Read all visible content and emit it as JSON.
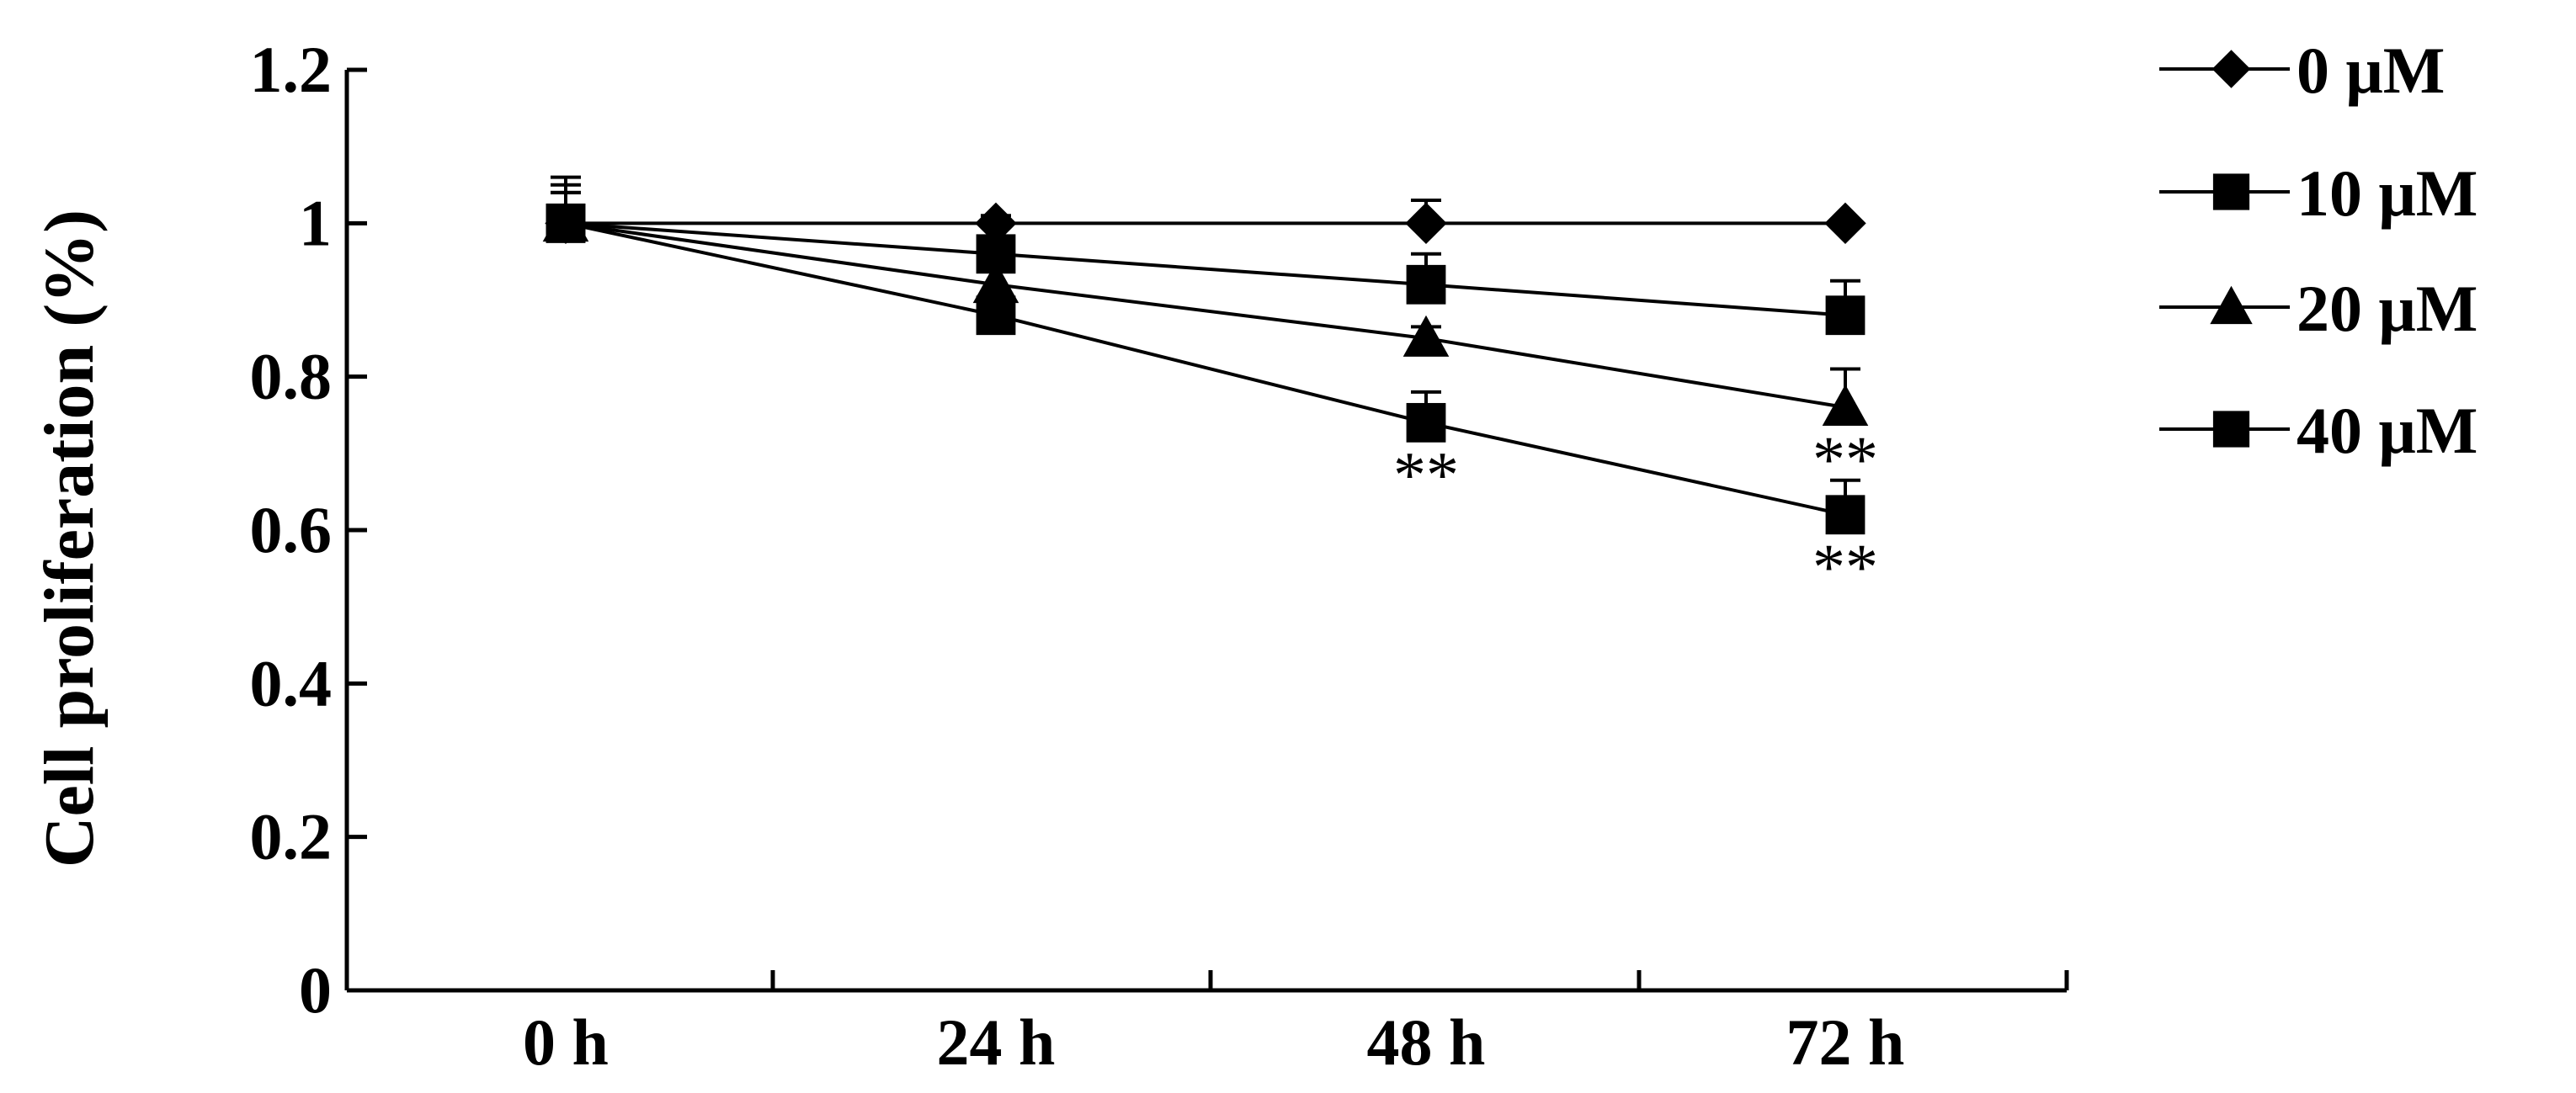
{
  "chart_data": {
    "type": "line",
    "title": "",
    "xlabel": "",
    "ylabel": "Cell proliferation (%)",
    "categories": [
      "0 h",
      "24 h",
      "48 h",
      "72 h"
    ],
    "ylim": [
      0,
      1.2
    ],
    "yticks": [
      0,
      0.2,
      0.4,
      0.6,
      0.8,
      1,
      1.2
    ],
    "ytick_labels": [
      "0",
      "0.2",
      "0.4",
      "0.6",
      "0.8",
      "1",
      "1.2"
    ],
    "legend_position": "right",
    "series": [
      {
        "name": "0 μM",
        "marker": "diamond",
        "values": [
          1.0,
          1.0,
          1.0,
          1.0
        ],
        "errors": [
          0.06,
          0.01,
          0.03,
          0.005
        ],
        "significance": [
          "",
          "",
          "",
          ""
        ]
      },
      {
        "name": "10 μM",
        "marker": "square",
        "values": [
          1.0,
          0.96,
          0.92,
          0.88
        ],
        "errors": [
          0.05,
          0.02,
          0.04,
          0.045
        ],
        "significance": [
          "",
          "",
          "",
          ""
        ]
      },
      {
        "name": "20 μM",
        "marker": "triangle",
        "values": [
          1.0,
          0.92,
          0.85,
          0.76
        ],
        "errors": [
          0.04,
          0.02,
          0.015,
          0.05
        ],
        "significance": [
          "",
          "",
          "",
          "**"
        ]
      },
      {
        "name": "40 μM",
        "marker": "square",
        "values": [
          1.0,
          0.88,
          0.74,
          0.62
        ],
        "errors": [
          0.04,
          0.02,
          0.04,
          0.045
        ],
        "significance": [
          "",
          "",
          "**",
          "**"
        ]
      }
    ]
  }
}
